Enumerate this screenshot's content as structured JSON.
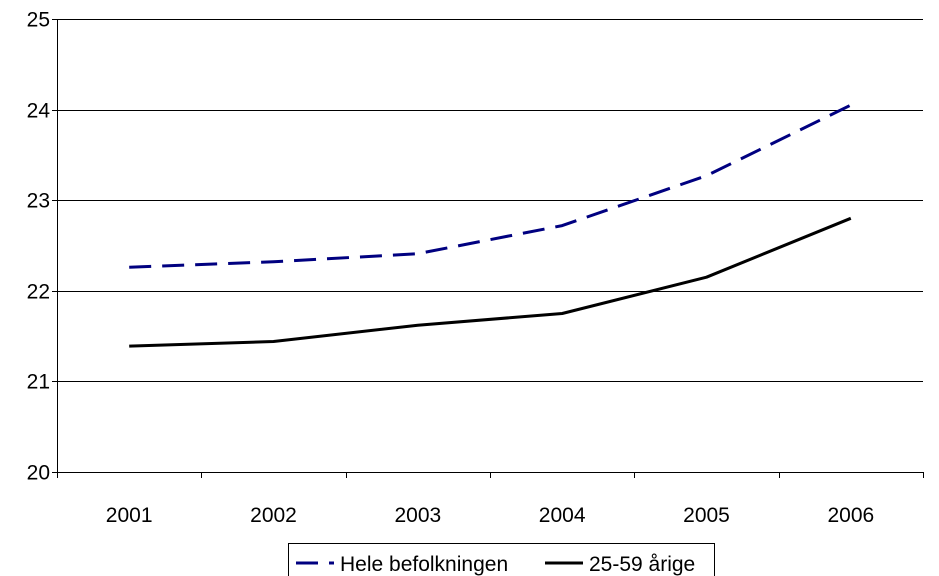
{
  "chart_data": {
    "type": "line",
    "categories": [
      "2001",
      "2002",
      "2003",
      "2004",
      "2005",
      "2006"
    ],
    "series": [
      {
        "name": "Hele befolkningen",
        "values": [
          22.26,
          22.32,
          22.41,
          22.72,
          23.27,
          24.05
        ],
        "color": "#000080",
        "style": "dashed"
      },
      {
        "name": "25-59 årige",
        "values": [
          21.39,
          21.44,
          21.62,
          21.75,
          22.15,
          22.8
        ],
        "color": "#000000",
        "style": "solid"
      }
    ],
    "title": "",
    "xlabel": "",
    "ylabel": "",
    "ylim": [
      20,
      25
    ],
    "yticks": [
      "20",
      "21",
      "22",
      "23",
      "24",
      "25"
    ],
    "grid": true,
    "legend_position": "bottom"
  }
}
